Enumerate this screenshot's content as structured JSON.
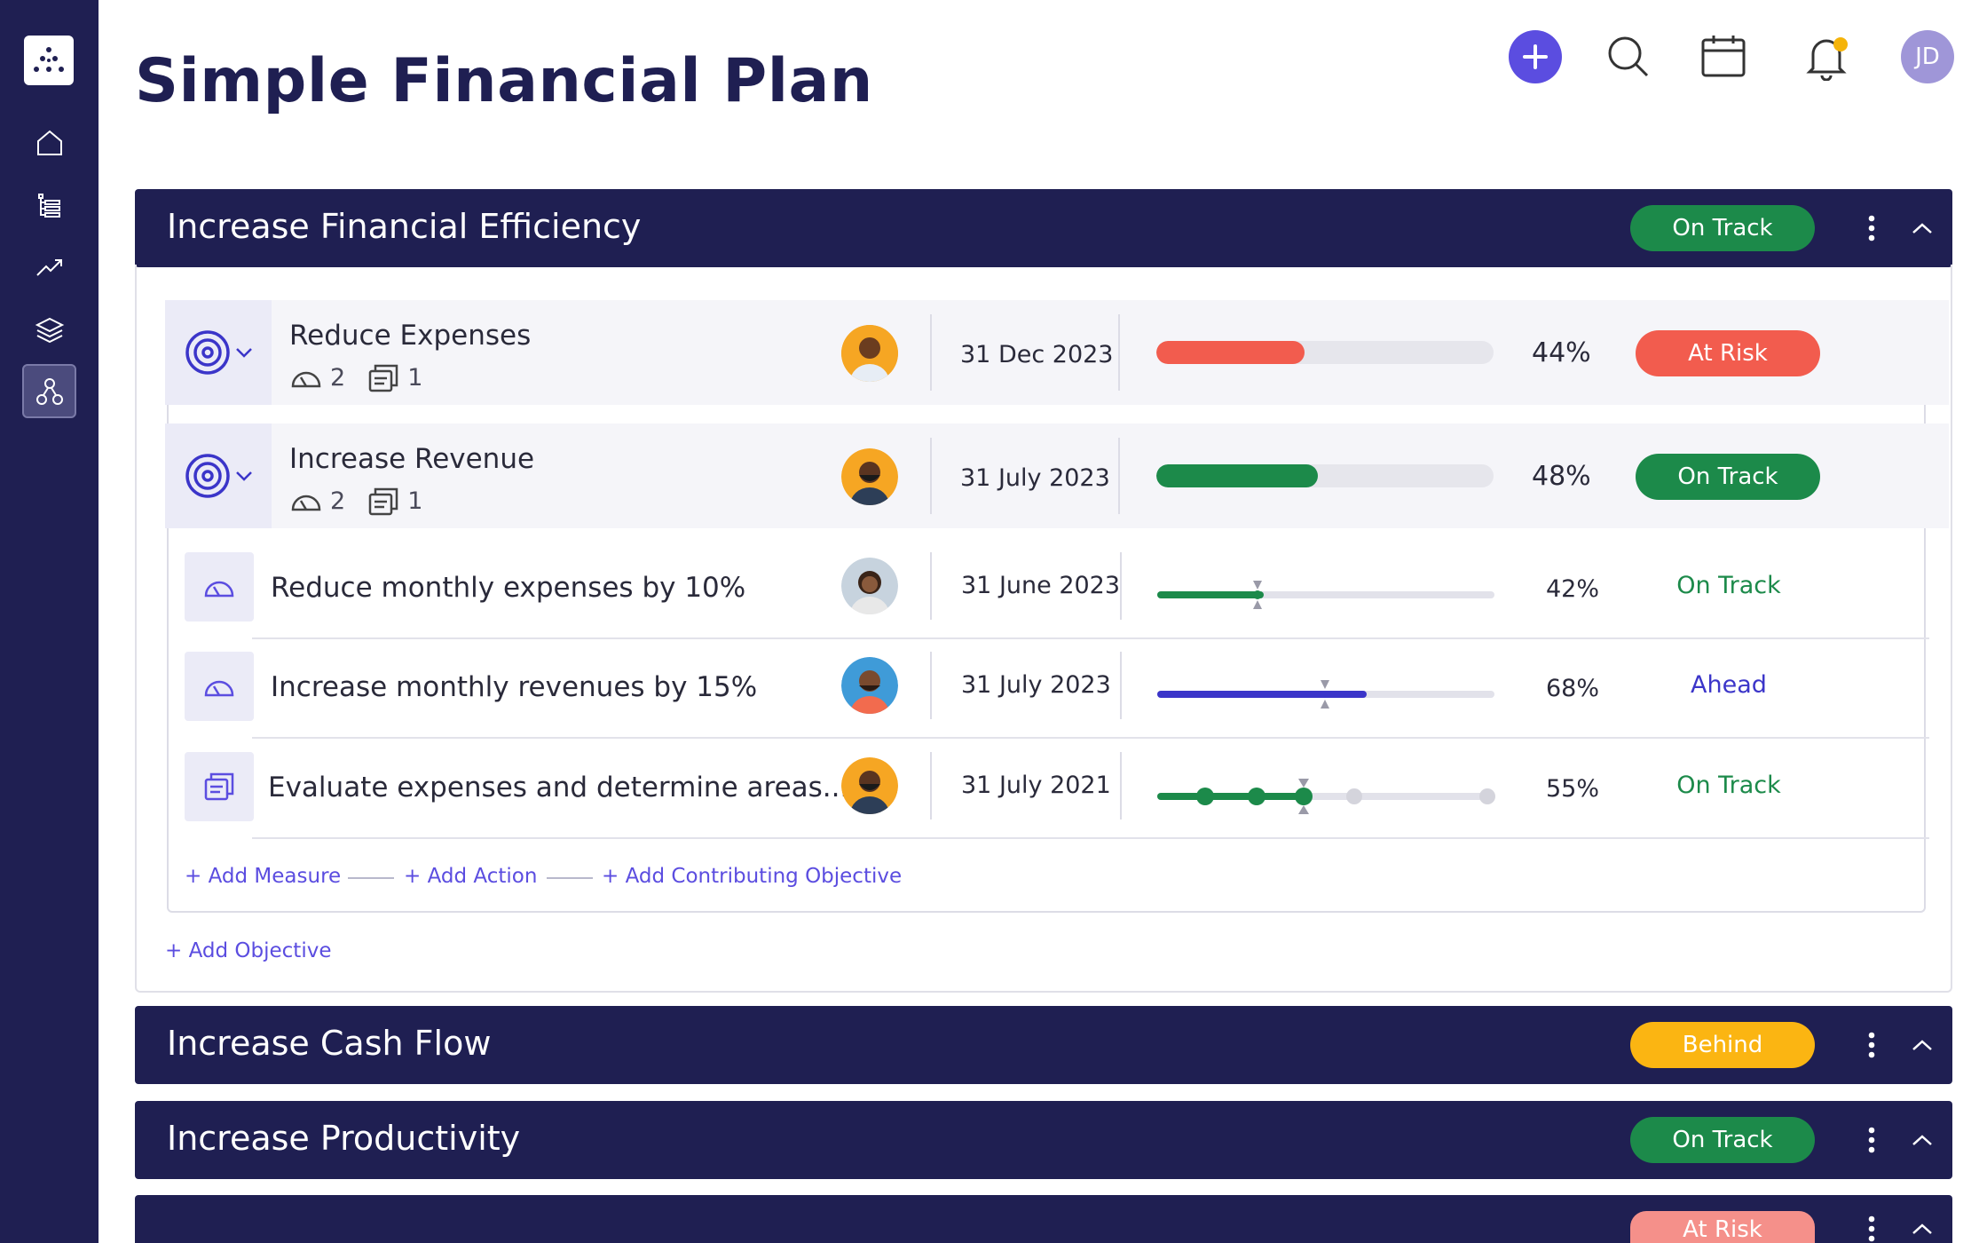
{
  "page": {
    "title": "Simple Financial Plan"
  },
  "header": {
    "user_initials": "JD"
  },
  "colors": {
    "navy": "#1f1f52",
    "accent": "#5b4de0",
    "on_track": "#1c8a4a",
    "at_risk": "#f25c4e",
    "behind": "#fbb512",
    "ahead": "#3b35c9"
  },
  "sections": [
    {
      "title": "Increase Financial Efficiency",
      "status": "On Track"
    },
    {
      "title": "Increase Cash Flow",
      "status": "Behind"
    },
    {
      "title": "Increase Productivity",
      "status": "On Track"
    },
    {
      "title": "",
      "status": "At Risk"
    }
  ],
  "objectives": [
    {
      "name": "Reduce Expenses",
      "measures": "2",
      "actions": "1",
      "date": "31 Dec 2023",
      "progress": 44,
      "progress_label": "44%",
      "status": "At Risk"
    },
    {
      "name": "Increase Revenue",
      "measures": "2",
      "actions": "1",
      "date": "31 July 2023",
      "progress": 48,
      "progress_label": "48%",
      "status": "On Track"
    }
  ],
  "sub_items": [
    {
      "icon": "gauge-icon",
      "name": "Reduce monthly expenses by 10%",
      "date": "31 June 2023",
      "progress": 42,
      "progress_label": "42%",
      "status": "On Track"
    },
    {
      "icon": "gauge-icon",
      "name": "Increase monthly revenues by 15%",
      "date": "31 July 2023",
      "progress": 68,
      "progress_label": "68%",
      "status": "Ahead"
    },
    {
      "icon": "document-icon",
      "name": "Evaluate expenses and determine areas...",
      "date": "31 July 2021",
      "progress": 55,
      "progress_label": "55%",
      "status": "On Track"
    }
  ],
  "links": {
    "add_measure": "+ Add Measure",
    "add_action": "+ Add Action",
    "add_contributing": "+ Add Contributing Objective",
    "add_objective": "+ Add Objective"
  },
  "icons": [
    "logo-icon",
    "home-icon",
    "list-tree-icon",
    "trend-up-icon",
    "layers-icon",
    "network-icon",
    "plus-icon",
    "search-icon",
    "calendar-icon",
    "bell-icon",
    "target-icon",
    "chevron-down-icon",
    "gauge-icon",
    "document-icon",
    "kebab-icon",
    "chevron-up-icon"
  ]
}
